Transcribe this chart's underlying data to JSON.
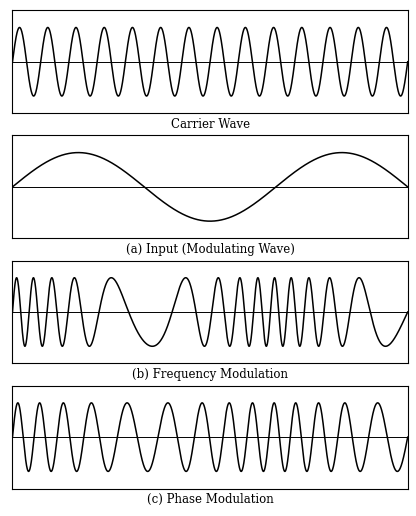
{
  "title_carrier": "Carrier Wave",
  "title_modulating": "(a) Input (Modulating Wave)",
  "title_fm": "(b) Frequency Modulation",
  "title_pm": "(c) Phase Modulation",
  "carrier_freq": 14.0,
  "modulating_freq": 1.5,
  "modulating_amp": 1.0,
  "carrier_amp": 1.0,
  "fm_deviation": 10.0,
  "pm_deviation": 3.0,
  "line_color": "#000000",
  "bg_color": "#ffffff",
  "line_width": 1.1,
  "title_fontsize": 8.5,
  "fig_width": 4.16,
  "fig_height": 5.16,
  "dpi": 100
}
